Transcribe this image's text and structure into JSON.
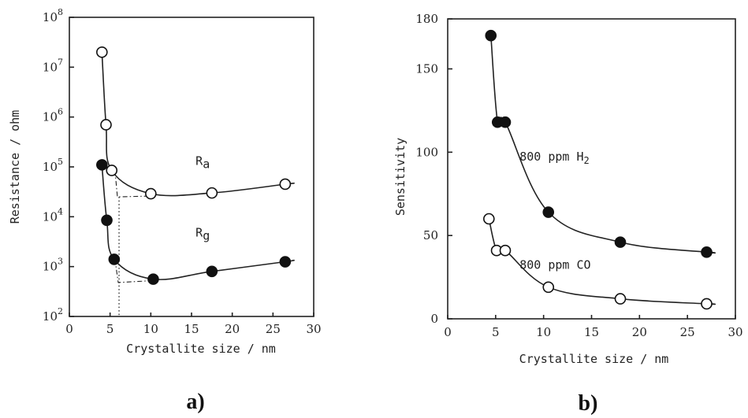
{
  "chart_data": [
    {
      "type": "scatter",
      "panel_label": "a)",
      "xlabel": "Crystallite size / nm",
      "ylabel": "Resistance / ohm",
      "xlim": [
        0,
        30
      ],
      "ylim": [
        100,
        100000000
      ],
      "y_scale": "log",
      "x_ticks": [
        "0",
        "5",
        "10",
        "15",
        "20",
        "25",
        "30"
      ],
      "y_ticks": [
        {
          "base": "10",
          "exp": "2"
        },
        {
          "base": "10",
          "exp": "3"
        },
        {
          "base": "10",
          "exp": "4"
        },
        {
          "base": "10",
          "exp": "5"
        },
        {
          "base": "10",
          "exp": "6"
        },
        {
          "base": "10",
          "exp": "7"
        },
        {
          "base": "10",
          "exp": "8"
        }
      ],
      "series": [
        {
          "name": "Ra",
          "label_main": "R",
          "label_sub": "a",
          "marker": "open-circle",
          "x": [
            4,
            4.5,
            5.2,
            10,
            17.5,
            26.5
          ],
          "y": [
            20000000,
            700000,
            85000,
            29000,
            30000,
            45000
          ]
        },
        {
          "name": "Rg",
          "label_main": "R",
          "label_sub": "g",
          "marker": "filled-circle",
          "x": [
            4,
            4.6,
            5.5,
            10.3,
            17.5,
            26.5
          ],
          "y": [
            110000,
            8500,
            1400,
            560,
            800,
            1250
          ]
        }
      ]
    },
    {
      "type": "scatter",
      "panel_label": "b)",
      "xlabel": "Crystallite size / nm",
      "ylabel": "Sensitivity",
      "xlim": [
        0,
        30
      ],
      "ylim": [
        0,
        180
      ],
      "x_ticks": [
        "0",
        "5",
        "10",
        "15",
        "20",
        "25",
        "30"
      ],
      "y_ticks": [
        "0",
        "50",
        "100",
        "150",
        "180"
      ],
      "series": [
        {
          "name": "800 ppm H2",
          "label_main": "800 ppm H",
          "label_sub": "2",
          "marker": "filled-circle",
          "x": [
            4.5,
            5.2,
            6.0,
            10.5,
            18.0,
            27.0
          ],
          "y": [
            170,
            118,
            118,
            64,
            46,
            40
          ]
        },
        {
          "name": "800 ppm CO",
          "label_main": "800 ppm CO",
          "label_sub": "",
          "marker": "open-circle",
          "x": [
            4.3,
            5.1,
            6.0,
            10.5,
            18.0,
            27.0
          ],
          "y": [
            60,
            41,
            41,
            19,
            12,
            9
          ]
        }
      ]
    }
  ]
}
